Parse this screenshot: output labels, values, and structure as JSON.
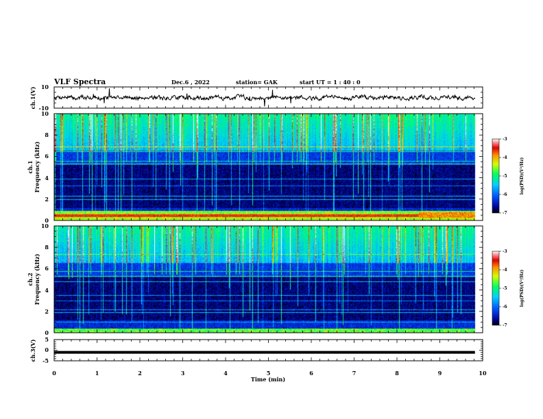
{
  "header": {
    "title": "VLF Spectra",
    "date": "Dec.6 , 2022",
    "station": "station= GAK",
    "start": "start  UT =   1 : 40 : 0"
  },
  "chart_data": [
    {
      "type": "line",
      "panel": "ch1-waveform",
      "ylabel": "ch.1(V)",
      "ylim": [
        -10,
        10
      ],
      "yticks": [
        "10",
        "-10"
      ],
      "xlim": [
        0,
        10
      ],
      "trace_mean": 0,
      "trace_spread": 2,
      "color": "#000000"
    },
    {
      "type": "heatmap",
      "panel": "ch1-spectrogram",
      "ylabel_line1": "ch.1",
      "ylabel_line2": "Frequency (kHz)",
      "ylim": [
        0,
        10
      ],
      "yticks": [
        "0",
        "2",
        "4",
        "6",
        "8",
        "10"
      ],
      "xlim": [
        0,
        10
      ],
      "colorbar": {
        "label": "log(PSD)(V²/Hz)",
        "range": [
          -7,
          -3
        ],
        "ticks": [
          "-3",
          "-4",
          "-5",
          "-6",
          "-7"
        ]
      }
    },
    {
      "type": "heatmap",
      "panel": "ch2-spectrogram",
      "ylabel_line1": "ch.2",
      "ylabel_line2": "Frequency (kHz)",
      "ylim": [
        0,
        10
      ],
      "yticks": [
        "0",
        "2",
        "4",
        "6",
        "8",
        "10"
      ],
      "xlim": [
        0,
        10
      ],
      "colorbar": {
        "label": "log(PSD)(V²/Hz)",
        "range": [
          -7,
          -3
        ],
        "ticks": [
          "-3",
          "-4",
          "-5",
          "-6",
          "-7"
        ]
      }
    },
    {
      "type": "line",
      "panel": "ch3-waveform",
      "ylabel": "ch.3(V)",
      "ylim": [
        -5,
        5
      ],
      "yticks": [
        "5",
        "0",
        "-5"
      ],
      "xlim": [
        0,
        10
      ],
      "trace_value": -1,
      "xlabel": "Time (min)",
      "xticks": [
        "0",
        "1",
        "2",
        "3",
        "4",
        "5",
        "6",
        "7",
        "8",
        "9",
        "10"
      ],
      "color": "#000000"
    }
  ]
}
